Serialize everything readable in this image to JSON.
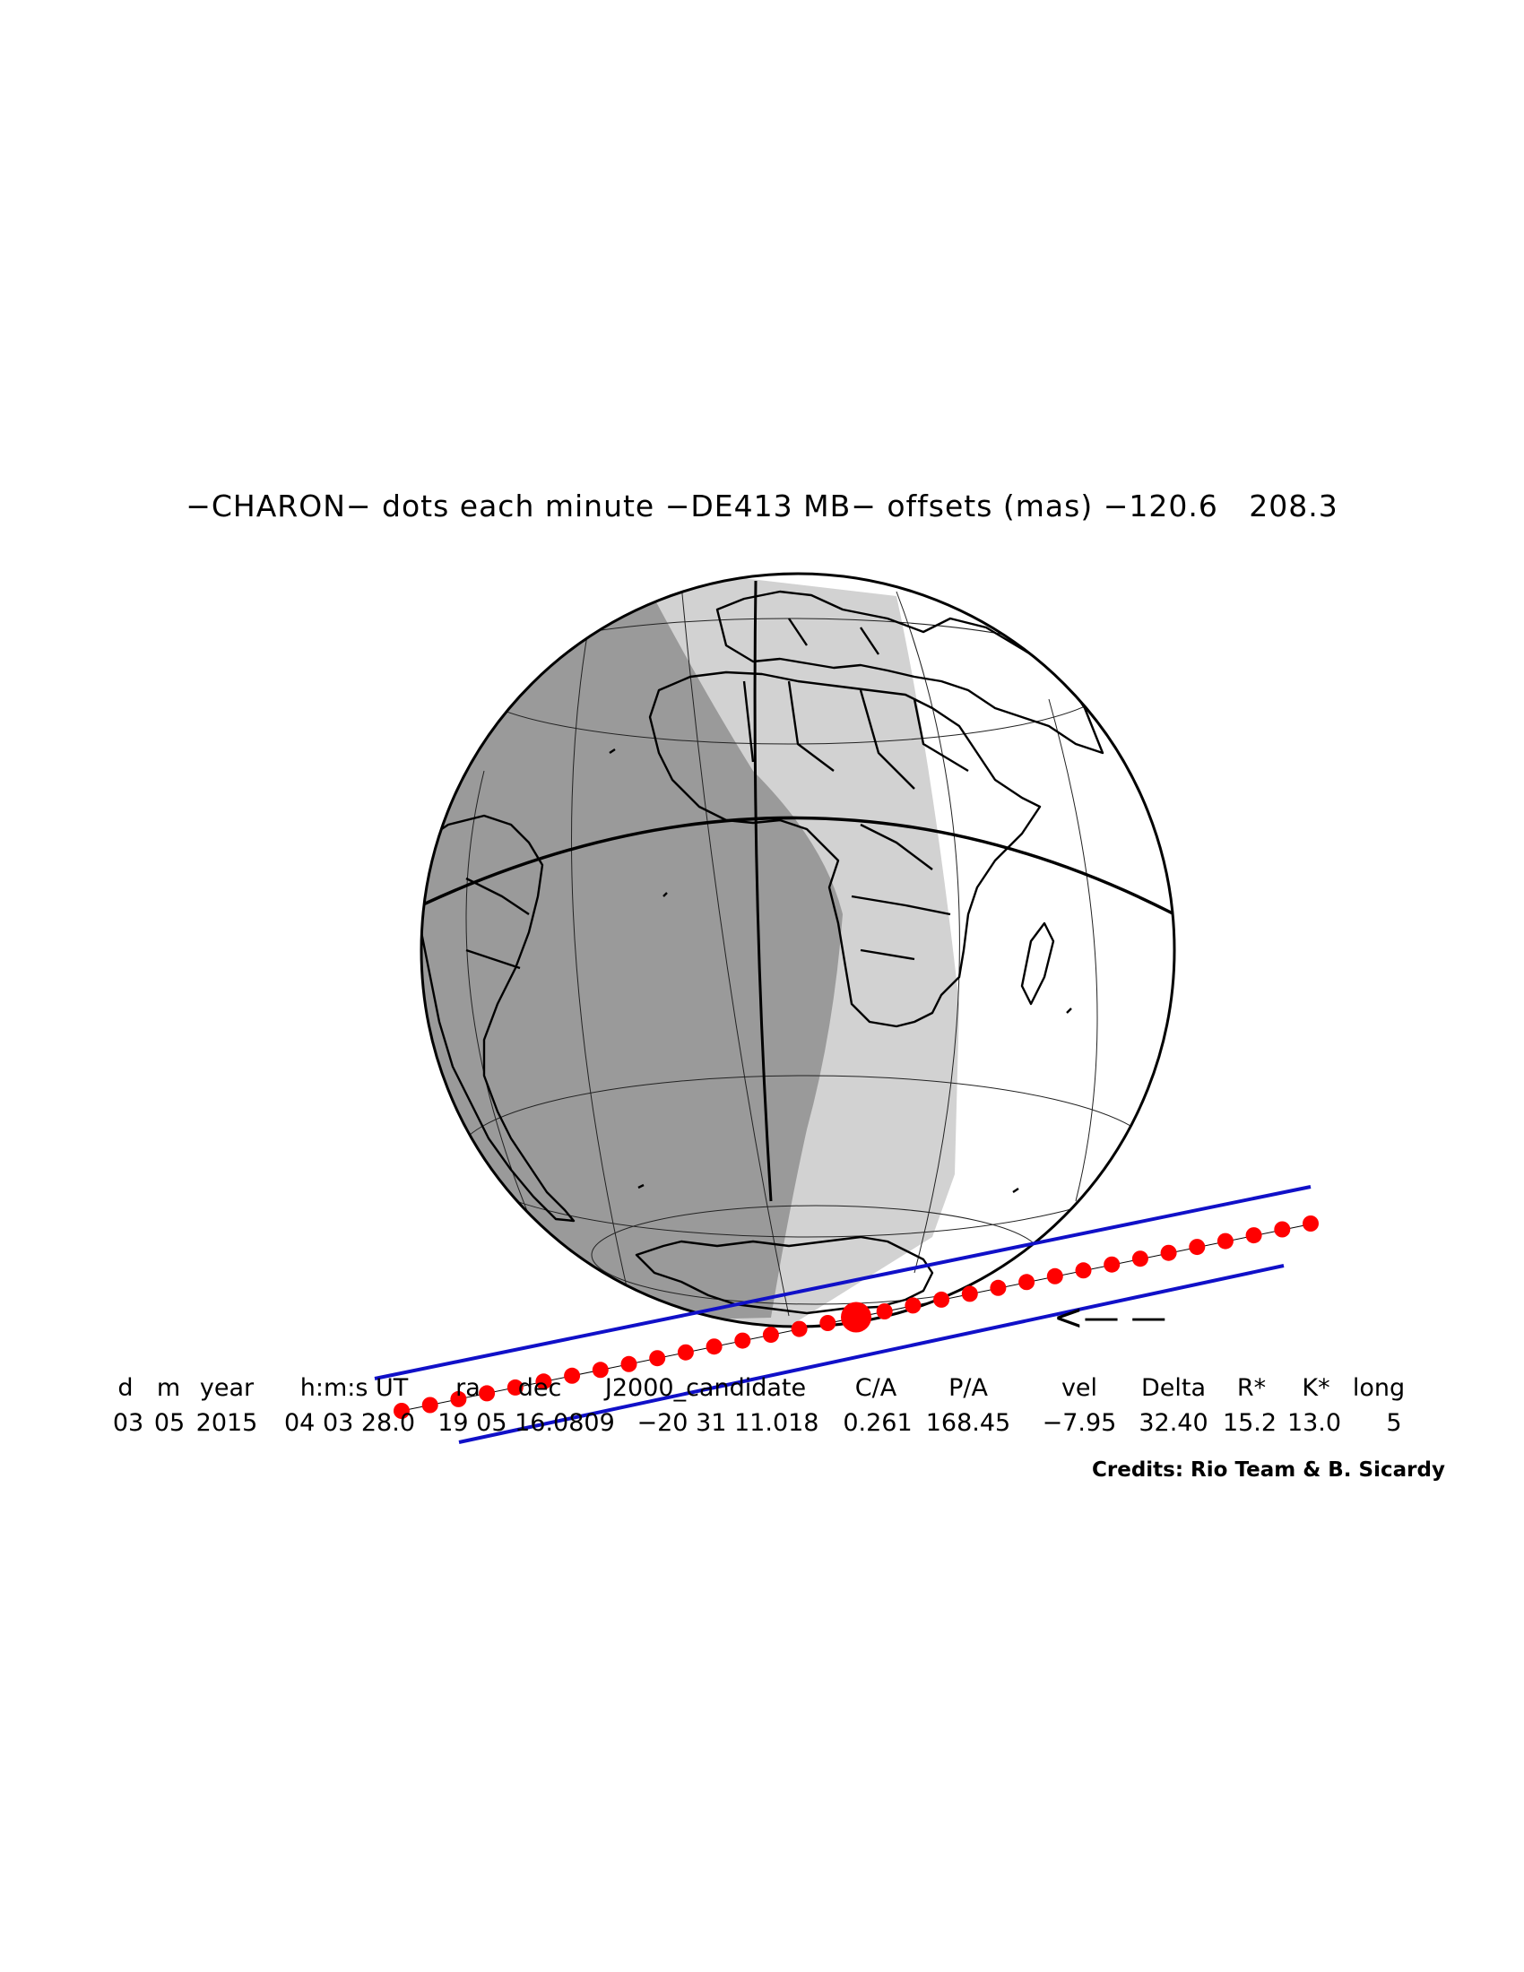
{
  "title": "−CHARON− dots each minute −DE413 MB− offsets (mas) −120.6   208.3",
  "table": {
    "headers": [
      "d",
      "m",
      "year",
      "h:m:s UT",
      "ra",
      "dec",
      "J2000_candidate",
      "C/A",
      "P/A",
      "vel",
      "Delta",
      "R*",
      "K*",
      "long"
    ],
    "values": [
      "03",
      "05",
      "2015",
      "04 03 28.0",
      "19 05 16.0809",
      "−20 31 11.018",
      "0.261",
      "168.45",
      "−7.95",
      "32.40",
      "15.2",
      "13.0",
      "5"
    ]
  },
  "direction_arrow": "<— —",
  "credits": "Credits: Rio Team & B. Sicardy",
  "colors": {
    "night": "#9a9a9a",
    "twilight": "#d2d2d2",
    "day": "#ffffff",
    "shadow_limits": "#1010c8",
    "track_dots": "#ff0000",
    "coastlines": "#000000"
  },
  "track": {
    "dot_interval_minutes": 1,
    "dot_count": 33,
    "closest_approach_dot_index": 16
  }
}
